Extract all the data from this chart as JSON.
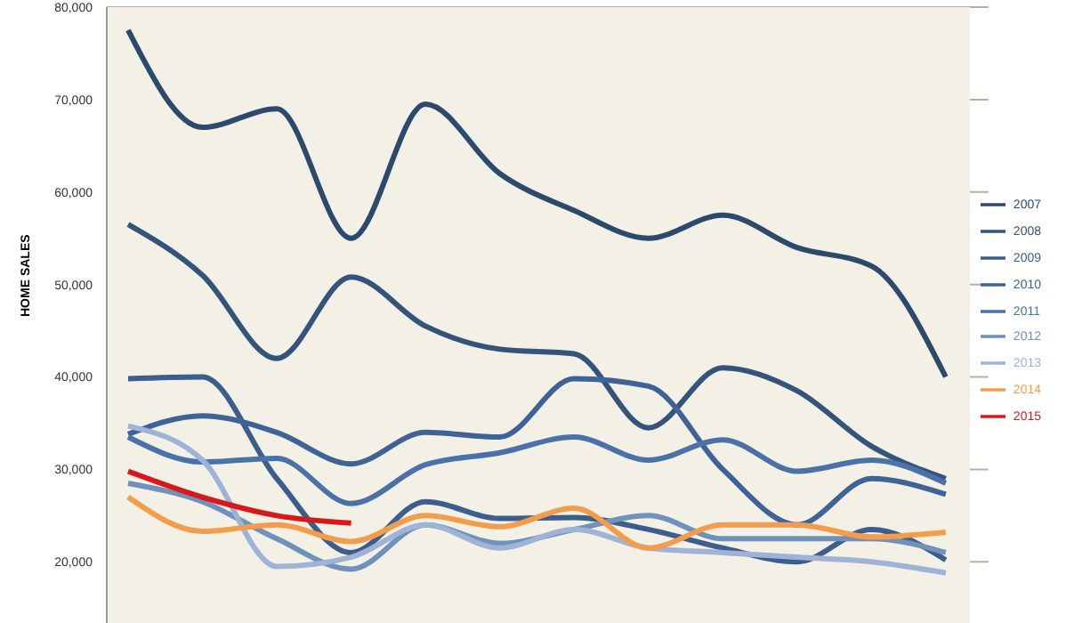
{
  "chart_data": {
    "type": "line",
    "ylabel": "HOME SALES",
    "categories": [
      null,
      null,
      null,
      null,
      null,
      null,
      null,
      null,
      null,
      null,
      null,
      null
    ],
    "series": [
      {
        "name": "2007",
        "color": "#2c4a6e",
        "values": [
          77500,
          67000,
          69000,
          55000,
          69500,
          62000,
          58000,
          55000,
          57500,
          54000,
          52000,
          40000
        ]
      },
      {
        "name": "2008",
        "color": "#34547c",
        "values": [
          56500,
          51000,
          42000,
          50800,
          45500,
          43000,
          42500,
          34500,
          41000,
          38500,
          32500,
          29000
        ]
      },
      {
        "name": "2009",
        "color": "#3b5e8c",
        "values": [
          39800,
          40000,
          29000,
          21000,
          26500,
          24700,
          24800,
          23500,
          21500,
          20000,
          23500,
          20200
        ]
      },
      {
        "name": "2010",
        "color": "#3f6396",
        "values": [
          33800,
          35800,
          34000,
          30600,
          34000,
          33500,
          39800,
          39000,
          30000,
          24000,
          29000,
          27300
        ]
      },
      {
        "name": "2011",
        "color": "#4a72a8",
        "values": [
          33500,
          30800,
          31200,
          26300,
          30500,
          31800,
          33500,
          31000,
          33200,
          29800,
          31000,
          28500
        ]
      },
      {
        "name": "2012",
        "color": "#7191bd",
        "values": [
          28500,
          26500,
          22500,
          19200,
          24000,
          22000,
          23500,
          25000,
          22500,
          22500,
          22500,
          21000
        ]
      },
      {
        "name": "2013",
        "color": "#9fb3d6",
        "values": [
          34700,
          31000,
          19500,
          20500,
          24000,
          21500,
          23500,
          21500,
          21000,
          20500,
          20000,
          18800
        ]
      },
      {
        "name": "2014",
        "color": "#f39c4a",
        "values": [
          27000,
          23300,
          24000,
          22200,
          25000,
          23800,
          25800,
          21500,
          24000,
          24000,
          22700,
          23200
        ]
      },
      {
        "name": "2015",
        "color": "#d7191c",
        "values": [
          29800,
          27000,
          25000,
          24200,
          null,
          null,
          null,
          null,
          null,
          null,
          null,
          null
        ]
      }
    ],
    "ylim": [
      13000,
      80000
    ],
    "yticks": [
      {
        "value": 20000,
        "label": "20,000"
      },
      {
        "value": 30000,
        "label": "30,000"
      },
      {
        "value": 40000,
        "label": "40,000"
      },
      {
        "value": 50000,
        "label": "50,000"
      },
      {
        "value": 60000,
        "label": "60,000"
      },
      {
        "value": 70000,
        "label": "70,000"
      },
      {
        "value": 80000,
        "label": "80,000"
      }
    ],
    "grid": "y",
    "legend": "right",
    "marker": "none",
    "line_style": "solid",
    "tick_labels": "y"
  }
}
